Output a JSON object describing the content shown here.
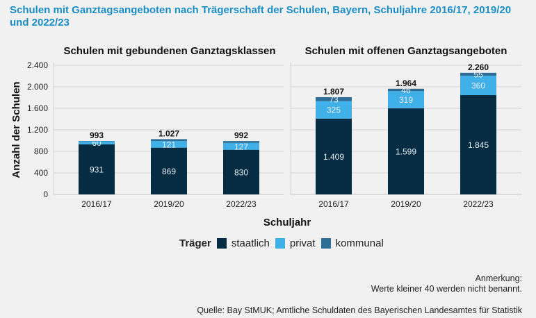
{
  "title": "Schulen mit Ganztagsangeboten nach Trägerschaft der Schulen, Bayern, Schuljahre 2016/17, 2019/20 und 2022/23",
  "colors": {
    "staatlich": "#062c43",
    "privat": "#3fb1e8",
    "kommunal": "#2e6e96",
    "title": "#1a8ec4"
  },
  "chart_data": [
    {
      "type": "bar",
      "stacked": true,
      "title": "Schulen mit gebundenen Ganztagsklassen",
      "xlabel": "Schuljahr",
      "ylabel": "Anzahl der Schulen",
      "ylim": [
        0,
        2400
      ],
      "yticks": [
        0,
        400,
        800,
        1200,
        1600,
        2000,
        2400
      ],
      "ytick_labels": [
        "0",
        "400",
        "800",
        "1.200",
        "1.600",
        "2.000",
        "2.400"
      ],
      "grid": true,
      "categories": [
        "2016/17",
        "2019/20",
        "2022/23"
      ],
      "series": [
        {
          "name": "staatlich",
          "values": [
            931,
            869,
            830
          ],
          "labels": [
            "931",
            "869",
            "830"
          ]
        },
        {
          "name": "privat",
          "values": [
            60,
            121,
            127
          ],
          "labels": [
            "60",
            "121",
            "127"
          ]
        },
        {
          "name": "kommunal",
          "values": [
            2,
            37,
            35
          ],
          "labels": [
            "",
            "",
            ""
          ]
        }
      ],
      "totals": [
        993,
        1027,
        992
      ],
      "total_labels": [
        "993",
        "1.027",
        "992"
      ]
    },
    {
      "type": "bar",
      "stacked": true,
      "title": "Schulen mit offenen Ganztagsangeboten",
      "xlabel": "Schuljahr",
      "ylabel": "Anzahl der Schulen",
      "ylim": [
        0,
        2400
      ],
      "yticks": [
        0,
        400,
        800,
        1200,
        1600,
        2000,
        2400
      ],
      "grid": true,
      "categories": [
        "2016/17",
        "2019/20",
        "2022/23"
      ],
      "series": [
        {
          "name": "staatlich",
          "values": [
            1409,
            1599,
            1845
          ],
          "labels": [
            "1.409",
            "1.599",
            "1.845"
          ]
        },
        {
          "name": "privat",
          "values": [
            325,
            319,
            360
          ],
          "labels": [
            "325",
            "319",
            "360"
          ]
        },
        {
          "name": "kommunal",
          "values": [
            73,
            46,
            55
          ],
          "labels": [
            "73",
            "46",
            "55"
          ]
        }
      ],
      "totals": [
        1807,
        1964,
        2260
      ],
      "total_labels": [
        "1.807",
        "1.964",
        "2.260"
      ]
    }
  ],
  "legend": {
    "title": "Träger",
    "position": "bottom",
    "items": [
      {
        "key": "staatlich",
        "label": "staatlich"
      },
      {
        "key": "privat",
        "label": "privat"
      },
      {
        "key": "kommunal",
        "label": "kommunal"
      }
    ]
  },
  "note": {
    "line1": "Anmerkung:",
    "line2": "Werte kleiner 40 werden nicht benannt."
  },
  "source": "Quelle: Bay StMUK; Amtliche Schuldaten des Bayerischen Landesamtes für Statistik"
}
